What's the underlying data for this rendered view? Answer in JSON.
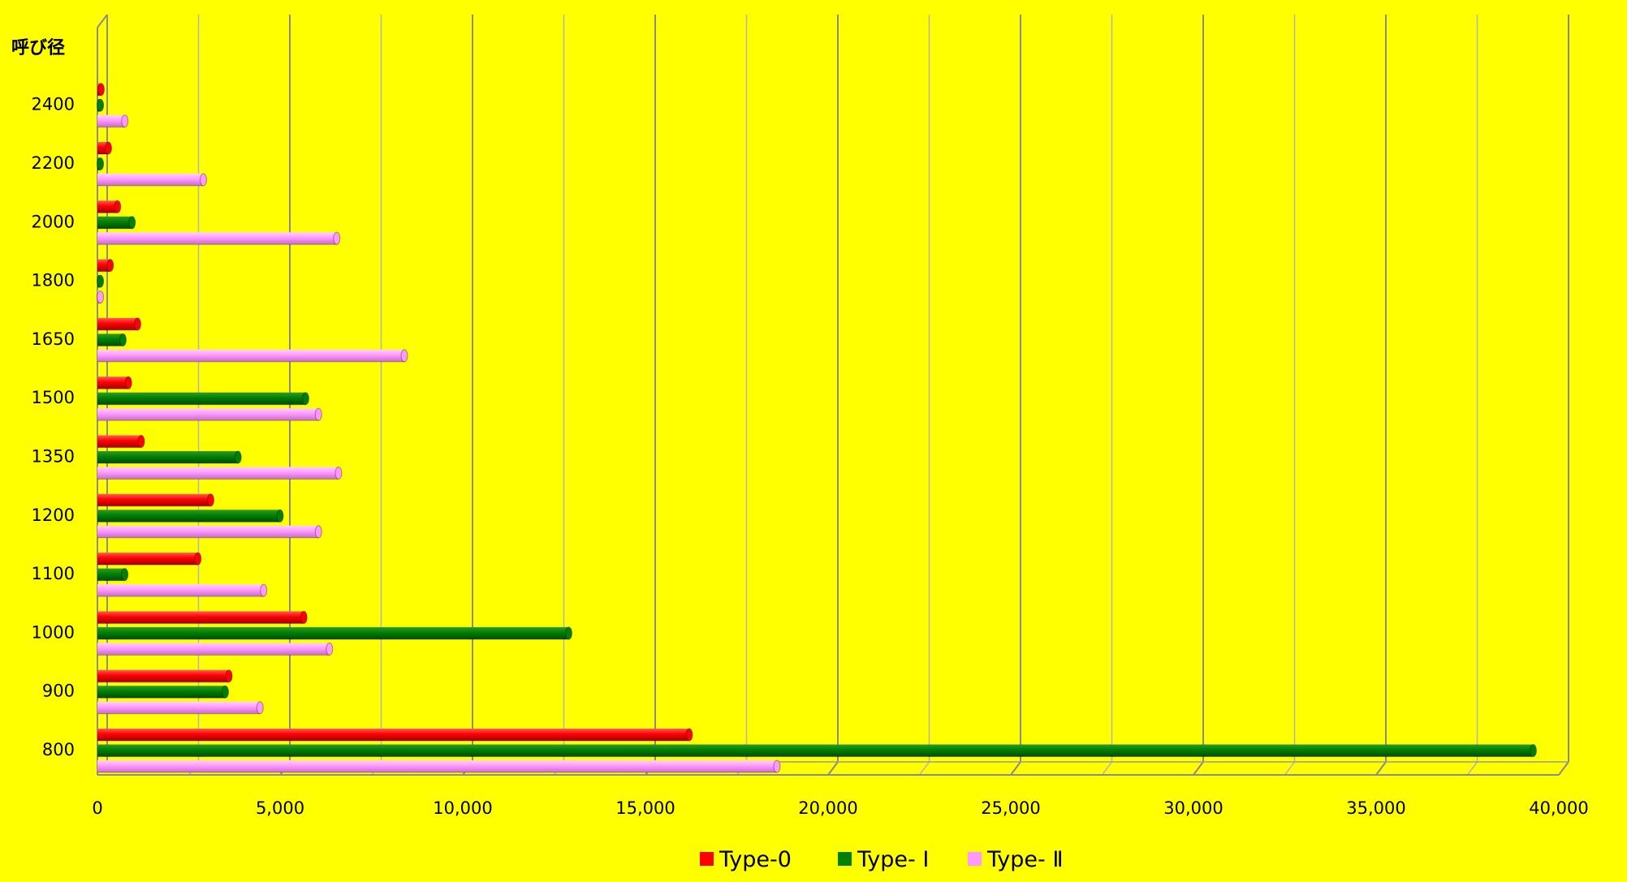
{
  "chart_data": {
    "type": "bar",
    "orientation": "horizontal",
    "ylabel": "呼び径",
    "categories": [
      "800",
      "900",
      "1000",
      "1100",
      "1200",
      "1350",
      "1500",
      "1650",
      "1800",
      "2000",
      "2200",
      "2400"
    ],
    "series": [
      {
        "name": "Type-0",
        "color": "#ff0000",
        "values": [
          16200,
          3600,
          5650,
          2750,
          3100,
          1200,
          850,
          1100,
          350,
          550,
          300,
          100
        ]
      },
      {
        "name": "Type- Ⅰ",
        "color": "#008000",
        "values": [
          39300,
          3500,
          12900,
          750,
          5000,
          3850,
          5700,
          700,
          80,
          950,
          80,
          80
        ]
      },
      {
        "name": "Type- Ⅱ",
        "color": "#ff99ff",
        "values": [
          18600,
          4450,
          6350,
          4550,
          6050,
          6600,
          6050,
          8400,
          80,
          6550,
          2900,
          750
        ]
      }
    ],
    "xlim": [
      0,
      40000
    ],
    "xticks": [
      0,
      5000,
      10000,
      15000,
      20000,
      25000,
      30000,
      35000,
      40000
    ],
    "xtick_labels": [
      "0",
      "5,000",
      "10,000",
      "15,000",
      "20,000",
      "25,000",
      "30,000",
      "35,000",
      "40,000"
    ],
    "grid": true,
    "legend": "bottom"
  }
}
